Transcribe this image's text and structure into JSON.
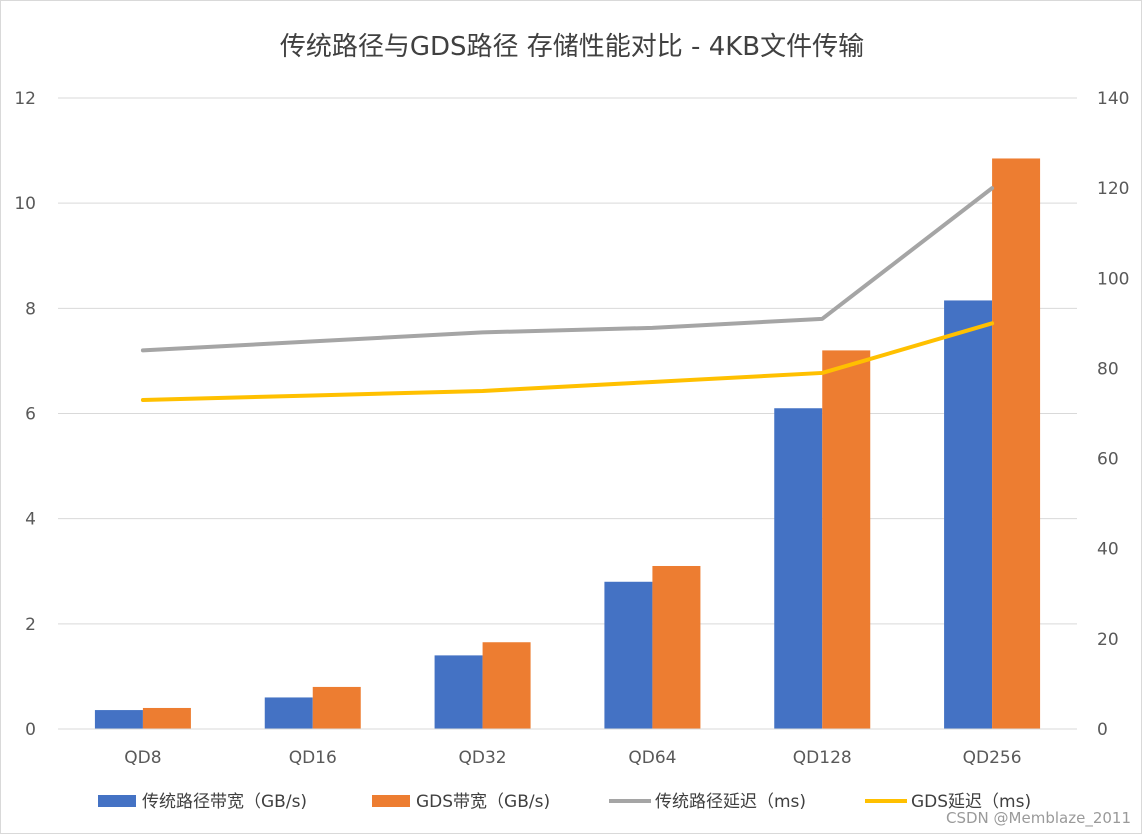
{
  "chart_data": {
    "type": "bar",
    "title": "传统路径与GDS路径 存储性能对比 - 4KB文件传输",
    "categories": [
      "QD8",
      "QD16",
      "QD32",
      "QD64",
      "QD128",
      "QD256"
    ],
    "y_left": {
      "lim": [
        0,
        12
      ],
      "ticks": [
        0,
        2,
        4,
        6,
        8,
        10,
        12
      ],
      "tick_labels": [
        "0",
        "2",
        "4",
        "6",
        "8",
        "10",
        "12"
      ]
    },
    "y_right": {
      "lim": [
        0,
        140
      ],
      "ticks": [
        0,
        20,
        40,
        60,
        80,
        100,
        120,
        140
      ],
      "tick_labels": [
        "0",
        "20",
        "40",
        "60",
        "80",
        "100",
        "120",
        "140"
      ]
    },
    "grid": true,
    "legend_position": "bottom",
    "series": [
      {
        "name": "传统路径带宽（GB/s)",
        "type": "bar",
        "axis": "left",
        "color": "#4472C4",
        "values": [
          0.36,
          0.6,
          1.4,
          2.8,
          6.1,
          8.15
        ]
      },
      {
        "name": "GDS带宽（GB/s)",
        "type": "bar",
        "axis": "left",
        "color": "#ED7D31",
        "values": [
          0.4,
          0.8,
          1.65,
          3.1,
          7.2,
          10.85
        ]
      },
      {
        "name": "传统路径延迟（ms)",
        "type": "line",
        "axis": "right",
        "color": "#A5A5A5",
        "values": [
          84,
          86,
          88,
          89,
          91,
          120
        ]
      },
      {
        "name": "GDS延迟（ms)",
        "type": "line",
        "axis": "right",
        "color": "#FFC000",
        "values": [
          73,
          74,
          75,
          77,
          79,
          90
        ]
      }
    ]
  },
  "watermark": "CSDN @Memblaze_2011"
}
